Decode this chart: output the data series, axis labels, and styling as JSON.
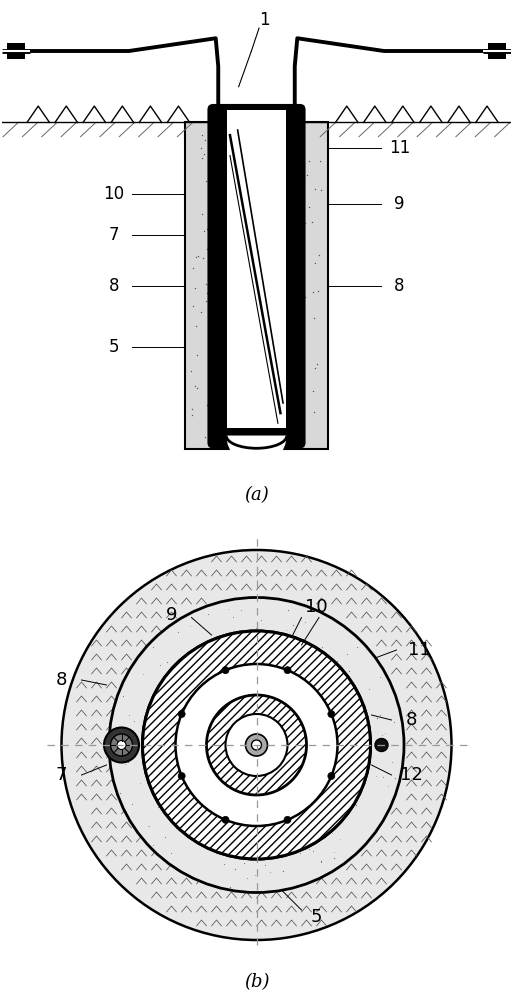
{
  "fig_width": 5.13,
  "fig_height": 10.0,
  "dpi": 100,
  "bg_color": "#ffffff",
  "caption_a": "(a)",
  "caption_b": "(b)"
}
